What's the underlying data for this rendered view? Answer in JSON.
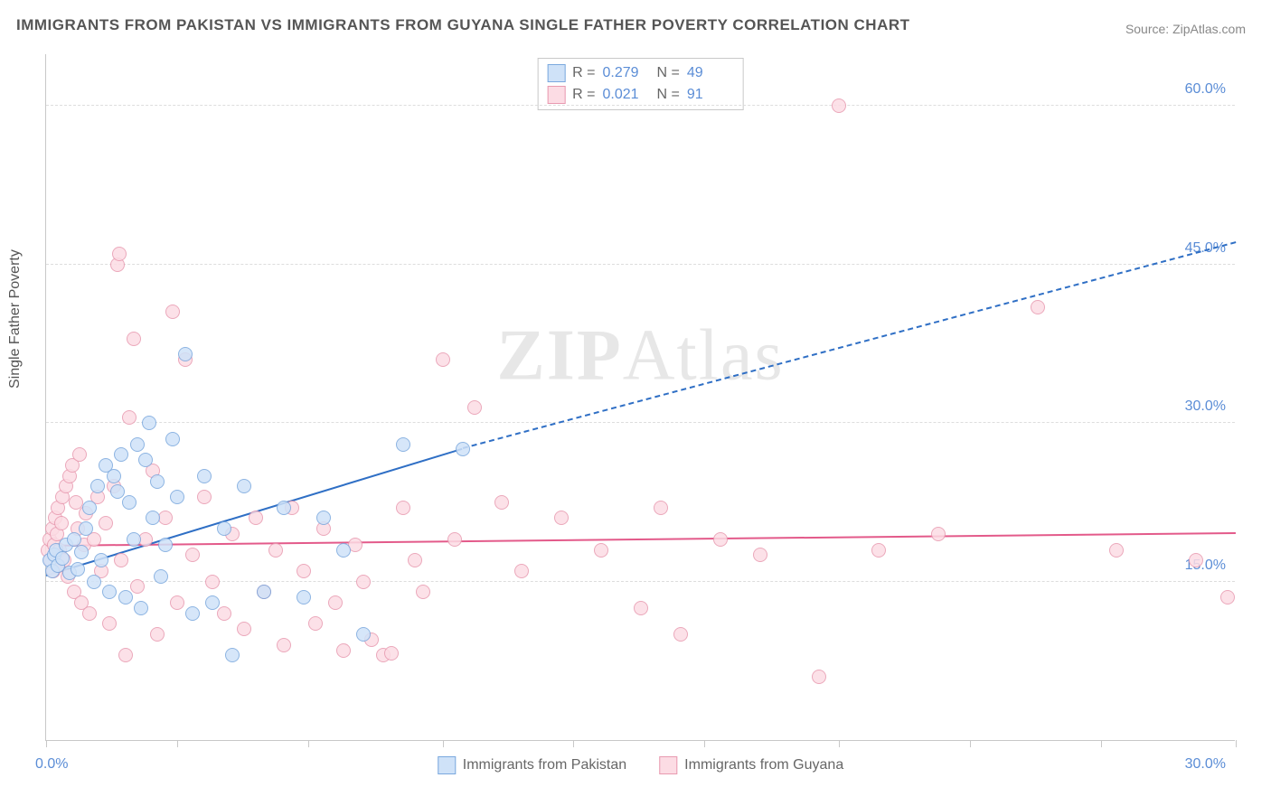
{
  "title": "IMMIGRANTS FROM PAKISTAN VS IMMIGRANTS FROM GUYANA SINGLE FATHER POVERTY CORRELATION CHART",
  "source": "Source: ZipAtlas.com",
  "y_axis_label": "Single Father Poverty",
  "watermark": {
    "part1": "ZIP",
    "part2": "Atlas"
  },
  "chart": {
    "type": "scatter",
    "xlim": [
      0,
      30
    ],
    "ylim": [
      0,
      65
    ],
    "x_ticks_major": [
      0,
      3.3,
      6.6,
      10,
      13.3,
      16.6,
      20,
      23.3,
      26.6,
      30
    ],
    "x_tick_labels": {
      "min": "0.0%",
      "max": "30.0%"
    },
    "y_gridlines": [
      15,
      30,
      45,
      60
    ],
    "y_tick_labels": [
      "15.0%",
      "30.0%",
      "45.0%",
      "60.0%"
    ],
    "background_color": "#ffffff",
    "grid_color": "#dddddd",
    "axis_color": "#c8c8c8",
    "tick_label_color": "#5b8dd6",
    "marker_radius": 8,
    "series": [
      {
        "name": "Immigrants from Pakistan",
        "fill": "#cfe2f8",
        "stroke": "#7aa8de",
        "trend_color": "#2f6fc5",
        "R": "0.279",
        "N": "49",
        "trend": {
          "x1": 0,
          "y1": 15.5,
          "x2": 10.5,
          "y2": 27.5,
          "dash_to_x": 30,
          "dash_to_y": 47
        },
        "points": [
          [
            0.1,
            17
          ],
          [
            0.15,
            16
          ],
          [
            0.2,
            17.5
          ],
          [
            0.25,
            18
          ],
          [
            0.3,
            16.5
          ],
          [
            0.4,
            17.2
          ],
          [
            0.5,
            18.5
          ],
          [
            0.6,
            15.8
          ],
          [
            0.7,
            19
          ],
          [
            0.8,
            16.2
          ],
          [
            0.9,
            17.8
          ],
          [
            1.0,
            20
          ],
          [
            1.1,
            22
          ],
          [
            1.2,
            15
          ],
          [
            1.3,
            24
          ],
          [
            1.4,
            17
          ],
          [
            1.5,
            26
          ],
          [
            1.6,
            14
          ],
          [
            1.7,
            25
          ],
          [
            1.8,
            23.5
          ],
          [
            1.9,
            27
          ],
          [
            2.0,
            13.5
          ],
          [
            2.1,
            22.5
          ],
          [
            2.2,
            19
          ],
          [
            2.3,
            28
          ],
          [
            2.4,
            12.5
          ],
          [
            2.5,
            26.5
          ],
          [
            2.6,
            30
          ],
          [
            2.7,
            21
          ],
          [
            2.8,
            24.5
          ],
          [
            2.9,
            15.5
          ],
          [
            3.0,
            18.5
          ],
          [
            3.2,
            28.5
          ],
          [
            3.3,
            23
          ],
          [
            3.5,
            36.5
          ],
          [
            3.7,
            12
          ],
          [
            4.0,
            25
          ],
          [
            4.2,
            13
          ],
          [
            4.5,
            20
          ],
          [
            4.7,
            8
          ],
          [
            5.0,
            24
          ],
          [
            5.5,
            14
          ],
          [
            6.0,
            22
          ],
          [
            6.5,
            13.5
          ],
          [
            7.0,
            21
          ],
          [
            7.5,
            18
          ],
          [
            8.0,
            10
          ],
          [
            9.0,
            28
          ],
          [
            10.5,
            27.5
          ]
        ]
      },
      {
        "name": "Immigrants from Guyana",
        "fill": "#fcdce4",
        "stroke": "#e89ab0",
        "trend_color": "#e35a8a",
        "R": "0.021",
        "N": "91",
        "trend": {
          "x1": 0,
          "y1": 18.3,
          "x2": 30,
          "y2": 19.5
        },
        "points": [
          [
            0.05,
            18
          ],
          [
            0.1,
            19
          ],
          [
            0.12,
            17
          ],
          [
            0.15,
            20
          ],
          [
            0.18,
            16
          ],
          [
            0.2,
            18.5
          ],
          [
            0.22,
            21
          ],
          [
            0.25,
            17.5
          ],
          [
            0.28,
            19.5
          ],
          [
            0.3,
            22
          ],
          [
            0.32,
            16.5
          ],
          [
            0.35,
            18
          ],
          [
            0.38,
            20.5
          ],
          [
            0.4,
            23
          ],
          [
            0.45,
            17
          ],
          [
            0.5,
            24
          ],
          [
            0.55,
            15.5
          ],
          [
            0.6,
            25
          ],
          [
            0.65,
            26
          ],
          [
            0.7,
            14
          ],
          [
            0.75,
            22.5
          ],
          [
            0.8,
            20
          ],
          [
            0.85,
            27
          ],
          [
            0.9,
            13
          ],
          [
            0.95,
            18.5
          ],
          [
            1.0,
            21.5
          ],
          [
            1.1,
            12
          ],
          [
            1.2,
            19
          ],
          [
            1.3,
            23
          ],
          [
            1.4,
            16
          ],
          [
            1.5,
            20.5
          ],
          [
            1.6,
            11
          ],
          [
            1.7,
            24
          ],
          [
            1.8,
            45
          ],
          [
            1.85,
            46
          ],
          [
            1.9,
            17
          ],
          [
            2.0,
            8
          ],
          [
            2.1,
            30.5
          ],
          [
            2.2,
            38
          ],
          [
            2.3,
            14.5
          ],
          [
            2.5,
            19
          ],
          [
            2.7,
            25.5
          ],
          [
            2.8,
            10
          ],
          [
            3.0,
            21
          ],
          [
            3.2,
            40.5
          ],
          [
            3.3,
            13
          ],
          [
            3.5,
            36
          ],
          [
            3.7,
            17.5
          ],
          [
            4.0,
            23
          ],
          [
            4.2,
            15
          ],
          [
            4.5,
            12
          ],
          [
            4.7,
            19.5
          ],
          [
            5.0,
            10.5
          ],
          [
            5.3,
            21
          ],
          [
            5.5,
            14
          ],
          [
            5.8,
            18
          ],
          [
            6.0,
            9
          ],
          [
            6.2,
            22
          ],
          [
            6.5,
            16
          ],
          [
            6.8,
            11
          ],
          [
            7.0,
            20
          ],
          [
            7.3,
            13
          ],
          [
            7.5,
            8.5
          ],
          [
            7.8,
            18.5
          ],
          [
            8.0,
            15
          ],
          [
            8.2,
            9.5
          ],
          [
            8.5,
            8
          ],
          [
            8.7,
            8.2
          ],
          [
            9.0,
            22
          ],
          [
            9.3,
            17
          ],
          [
            9.5,
            14
          ],
          [
            10.0,
            36
          ],
          [
            10.3,
            19
          ],
          [
            10.8,
            31.5
          ],
          [
            11.5,
            22.5
          ],
          [
            12.0,
            16
          ],
          [
            13.0,
            21
          ],
          [
            14.0,
            18
          ],
          [
            15.0,
            12.5
          ],
          [
            15.5,
            22
          ],
          [
            16.0,
            10
          ],
          [
            17.0,
            19
          ],
          [
            18.0,
            17.5
          ],
          [
            19.5,
            6
          ],
          [
            20.0,
            60
          ],
          [
            21.0,
            18
          ],
          [
            22.5,
            19.5
          ],
          [
            25.0,
            41
          ],
          [
            27.0,
            18
          ],
          [
            29.0,
            17
          ],
          [
            29.8,
            13.5
          ]
        ]
      }
    ]
  }
}
